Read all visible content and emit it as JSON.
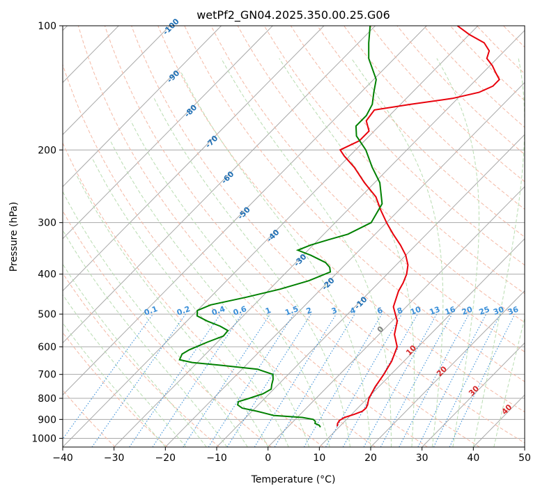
{
  "chart_data": {
    "type": "line",
    "subtype": "skew-t log-p",
    "title": "wetPf2_GN04.2025.350.00.25.G06",
    "xlabel": "Temperature (°C)",
    "ylabel": "Pressure (hPa)",
    "xlim": [
      -40,
      50
    ],
    "ylim": [
      1050,
      100
    ],
    "x_ticks": [
      -40,
      -30,
      -20,
      -10,
      0,
      10,
      20,
      30,
      40,
      50
    ],
    "x_tick_labels": [
      "−40",
      "−30",
      "−20",
      "−10",
      "0",
      "10",
      "20",
      "30",
      "40",
      "50"
    ],
    "y_ticks": [
      100,
      200,
      300,
      400,
      500,
      600,
      700,
      800,
      900,
      1000
    ],
    "y_tick_labels": [
      "100",
      "200",
      "300",
      "400",
      "500",
      "600",
      "700",
      "800",
      "900",
      "1000"
    ],
    "series": [
      {
        "name": "Temperature",
        "color": "#e8000b",
        "points": [
          [
            935,
            9.5
          ],
          [
            920,
            9.0
          ],
          [
            905,
            8.8
          ],
          [
            890,
            9.2
          ],
          [
            875,
            10.5
          ],
          [
            860,
            11.5
          ],
          [
            845,
            11.6
          ],
          [
            830,
            11.3
          ],
          [
            815,
            10.8
          ],
          [
            800,
            10.3
          ],
          [
            750,
            9.3
          ],
          [
            700,
            8.6
          ],
          [
            650,
            7.6
          ],
          [
            600,
            5.9
          ],
          [
            560,
            3.0
          ],
          [
            520,
            1.0
          ],
          [
            480,
            -2.5
          ],
          [
            440,
            -4.5
          ],
          [
            420,
            -5.2
          ],
          [
            400,
            -6.2
          ],
          [
            380,
            -7.7
          ],
          [
            360,
            -10.0
          ],
          [
            340,
            -13.0
          ],
          [
            320,
            -16.5
          ],
          [
            300,
            -20.0
          ],
          [
            280,
            -23.5
          ],
          [
            260,
            -27.0
          ],
          [
            240,
            -32.0
          ],
          [
            220,
            -37.0
          ],
          [
            207,
            -41.0
          ],
          [
            200,
            -43.0
          ],
          [
            190,
            -41.0
          ],
          [
            180,
            -41.0
          ],
          [
            170,
            -43.5
          ],
          [
            160,
            -44.0
          ],
          [
            155,
            -38.0
          ],
          [
            150,
            -31.0
          ],
          [
            145,
            -27.0
          ],
          [
            140,
            -25.5
          ],
          [
            135,
            -25.5
          ],
          [
            130,
            -27.5
          ],
          [
            125,
            -29.5
          ],
          [
            120,
            -32.0
          ],
          [
            115,
            -33.0
          ],
          [
            110,
            -35.5
          ],
          [
            105,
            -40.0
          ],
          [
            100,
            -44.0
          ]
        ]
      },
      {
        "name": "Dewpoint",
        "color": "#008000",
        "points": [
          [
            940,
            6.4
          ],
          [
            930,
            5.8
          ],
          [
            920,
            4.6
          ],
          [
            910,
            4.3
          ],
          [
            900,
            3.5
          ],
          [
            890,
            1.0
          ],
          [
            880,
            -5.0
          ],
          [
            860,
            -9.0
          ],
          [
            845,
            -12.5
          ],
          [
            830,
            -14.0
          ],
          [
            815,
            -14.5
          ],
          [
            800,
            -13.0
          ],
          [
            780,
            -11.2
          ],
          [
            760,
            -10.5
          ],
          [
            740,
            -11.3
          ],
          [
            720,
            -12.0
          ],
          [
            700,
            -13.0
          ],
          [
            680,
            -17.0
          ],
          [
            665,
            -25.0
          ],
          [
            655,
            -31.0
          ],
          [
            645,
            -34.0
          ],
          [
            625,
            -34.6
          ],
          [
            610,
            -34.0
          ],
          [
            585,
            -32.0
          ],
          [
            565,
            -30.0
          ],
          [
            548,
            -30.2
          ],
          [
            535,
            -32.5
          ],
          [
            520,
            -36.0
          ],
          [
            505,
            -39.0
          ],
          [
            490,
            -40.0
          ],
          [
            475,
            -38.5
          ],
          [
            455,
            -33.0
          ],
          [
            435,
            -28.0
          ],
          [
            415,
            -24.0
          ],
          [
            395,
            -21.5
          ],
          [
            385,
            -22.5
          ],
          [
            375,
            -24.2
          ],
          [
            360,
            -28.5
          ],
          [
            350,
            -32.0
          ],
          [
            340,
            -30.5
          ],
          [
            330,
            -28.0
          ],
          [
            320,
            -25.3
          ],
          [
            300,
            -23.0
          ],
          [
            270,
            -24.5
          ],
          [
            240,
            -29.0
          ],
          [
            220,
            -33.5
          ],
          [
            200,
            -38.0
          ],
          [
            185,
            -42.5
          ],
          [
            175,
            -44.5
          ],
          [
            165,
            -44.5
          ],
          [
            155,
            -45.5
          ],
          [
            145,
            -47.5
          ],
          [
            135,
            -49.5
          ],
          [
            120,
            -55.0
          ],
          [
            110,
            -58.0
          ],
          [
            100,
            -61.0
          ]
        ]
      }
    ],
    "annotations": {
      "mixing_ratio_labels": [
        "0.1",
        "0.2",
        "0.4",
        "0.6",
        "1",
        "1.5",
        "2",
        "3",
        "4",
        "6",
        "8",
        "10",
        "13",
        "16",
        "20",
        "25",
        "30",
        "36"
      ],
      "mixing_ratio_values": [
        0.1,
        0.2,
        0.4,
        0.6,
        1,
        1.5,
        2,
        3,
        4,
        6,
        8,
        10,
        13,
        16,
        20,
        25,
        30,
        36
      ],
      "upper_temperature_labels": [
        "-100",
        "-90",
        "-80",
        "-70",
        "-60",
        "-50",
        "-40",
        "-30",
        "-20",
        "-10"
      ],
      "upper_label_coords": [
        [
          -100,
          100
        ],
        [
          -90,
          132
        ],
        [
          -80,
          160
        ],
        [
          -70,
          190
        ],
        [
          -60,
          232
        ],
        [
          -50,
          283
        ],
        [
          -40,
          321
        ],
        [
          -30,
          368
        ],
        [
          -20,
          420
        ],
        [
          -10,
          467
        ]
      ],
      "lower_temperature_labels": [
        "0",
        "10",
        "20",
        "30",
        "40"
      ],
      "lower_label_coords": [
        [
          0,
          550
        ],
        [
          10,
          618
        ],
        [
          20,
          695
        ],
        [
          30,
          775
        ],
        [
          40,
          860
        ]
      ]
    },
    "colors": {
      "isotherm": "#a8a8a8",
      "isobar": "#a8a8a8",
      "dry_adiabat": "#f4b8a4",
      "moist_adiabat": "#b8dcb0",
      "mixing_ratio": "#3a8fd8",
      "upper_label": "#1f6fb4",
      "lower_label_zero": "#808080",
      "lower_label": "#d62728",
      "background_arc": "#dcc4a8"
    }
  }
}
